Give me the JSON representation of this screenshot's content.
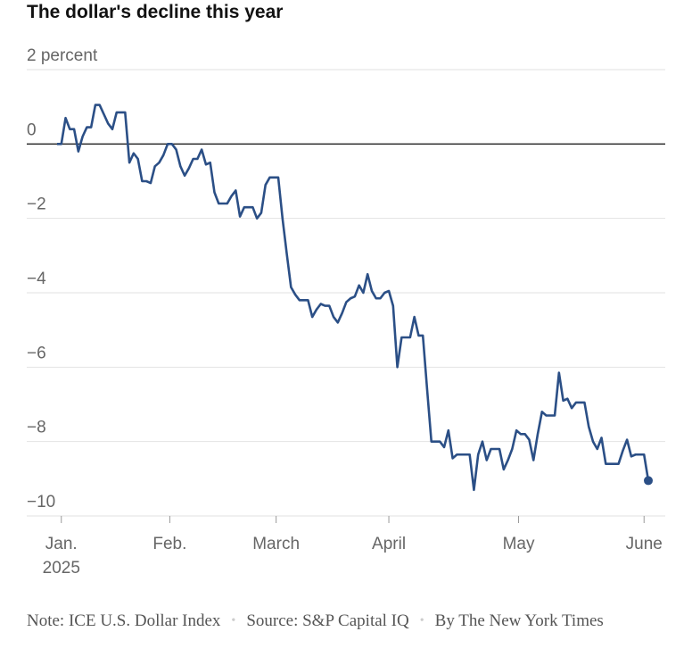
{
  "chart_data": {
    "type": "line",
    "title": "The dollar's decline this year",
    "series": [
      {
        "name": "ICE U.S. Dollar Index",
        "color": "#2b4f86",
        "values": [
          0,
          0,
          0.7,
          0.4,
          0.4,
          -0.2,
          0.2,
          0.45,
          0.45,
          1.05,
          1.05,
          0.8,
          0.55,
          0.4,
          0.85,
          0.85,
          0.85,
          -0.5,
          -0.25,
          -0.4,
          -1.0,
          -1.0,
          -1.05,
          -0.6,
          -0.5,
          -0.3,
          0,
          0,
          -0.15,
          -0.6,
          -0.85,
          -0.65,
          -0.4,
          -0.4,
          -0.15,
          -0.55,
          -0.5,
          -1.3,
          -1.6,
          -1.6,
          -1.6,
          -1.4,
          -1.25,
          -1.95,
          -1.7,
          -1.7,
          -1.7,
          -2.0,
          -1.85,
          -1.1,
          -0.9,
          -0.9,
          -0.9,
          -2.0,
          -2.95,
          -3.85,
          -4.05,
          -4.2,
          -4.2,
          -4.2,
          -4.65,
          -4.45,
          -4.3,
          -4.35,
          -4.35,
          -4.65,
          -4.8,
          -4.55,
          -4.25,
          -4.15,
          -4.1,
          -3.8,
          -4.0,
          -3.5,
          -3.95,
          -4.15,
          -4.15,
          -4.0,
          -3.95,
          -4.35,
          -6.0,
          -5.2,
          -5.2,
          -5.2,
          -4.65,
          -5.15,
          -5.15,
          -6.6,
          -8.0,
          -8.0,
          -8.0,
          -8.15,
          -7.7,
          -8.45,
          -8.35,
          -8.35,
          -8.35,
          -8.35,
          -9.3,
          -8.35,
          -8.0,
          -8.5,
          -8.2,
          -8.2,
          -8.2,
          -8.75,
          -8.5,
          -8.2,
          -7.7,
          -7.8,
          -7.8,
          -7.95,
          -8.5,
          -7.8,
          -7.2,
          -7.3,
          -7.3,
          -7.3,
          -6.15,
          -6.9,
          -6.85,
          -7.1,
          -6.95,
          -6.95,
          -6.95,
          -7.6,
          -8.0,
          -8.2,
          -7.9,
          -8.6,
          -8.6,
          -8.6,
          -8.6,
          -8.25,
          -7.95,
          -8.4,
          -8.35,
          -8.35,
          -8.35,
          -9.05
        ]
      }
    ],
    "xlim": [
      0,
      139
    ],
    "xticks": [
      {
        "value": 1,
        "label": "Jan."
      },
      {
        "value": 26.5,
        "label": "Feb."
      },
      {
        "value": 51.5,
        "label": "March"
      },
      {
        "value": 78,
        "label": "April"
      },
      {
        "value": 108.5,
        "label": "May"
      },
      {
        "value": 138,
        "label": "June"
      }
    ],
    "x_axis_year": "2025",
    "ylim": [
      -10,
      2
    ],
    "yticks": [
      {
        "value": 2,
        "label": "2 percent"
      },
      0,
      {
        "value": -2,
        "label": "−2"
      },
      {
        "value": -4,
        "label": "−4"
      },
      {
        "value": -6,
        "label": "−6"
      },
      {
        "value": -8,
        "label": "−8"
      },
      {
        "value": -10,
        "label": "−10"
      }
    ],
    "grid": true,
    "notes": [
      "Note: ICE U.S. Dollar Index",
      "Source: S&P Capital IQ",
      "By The New York Times"
    ]
  }
}
